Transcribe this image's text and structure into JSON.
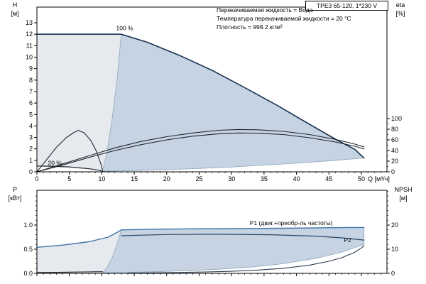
{
  "title": "TPE3 65-120, 1*230 V",
  "conditions": [
    "Перекачиваемая жидкость = Вода",
    "Температура перекачиваемой жидкости = 20 °C",
    "Плотность = 998.2 кг/м³"
  ],
  "axes_headers": {
    "h": {
      "symbol": "H",
      "unit": "[м]"
    },
    "eta": {
      "symbol": "eta",
      "unit": "[%]"
    },
    "p": {
      "symbol": "P",
      "unit": "[кВт]"
    },
    "npsh": {
      "symbol": "NPSH",
      "unit": "[м]"
    }
  },
  "colors": {
    "band_light": "#e6eaee",
    "band_main": "#c5d3e2",
    "band_edge": "#8fa7be",
    "white": "#ffffff",
    "curve": "#222630",
    "pump_curve": "#1c3552",
    "p1": "#4273a6",
    "p2": "#27496b",
    "npsh": "#2c3e50"
  },
  "chart_data": [
    {
      "type": "line",
      "name": "qh-eta-chart",
      "x_axis": {
        "unit_label": "Q [м³/ч]",
        "show_labels": true,
        "min": 0,
        "max": 53.9,
        "minor_step": 1,
        "major": [
          [
            0,
            "0"
          ],
          [
            5,
            "5"
          ],
          [
            10,
            "10"
          ],
          [
            15,
            "15"
          ],
          [
            20,
            "20"
          ],
          [
            25,
            "25"
          ],
          [
            30,
            "30"
          ],
          [
            35,
            "35"
          ],
          [
            40,
            "40"
          ],
          [
            45,
            "45"
          ],
          [
            50,
            "50"
          ]
        ]
      },
      "y_left": {
        "axis": "h",
        "minor_step": 0,
        "major": [
          [
            0,
            "0"
          ],
          [
            1,
            "1"
          ],
          [
            2,
            "2"
          ],
          [
            3,
            "3"
          ],
          [
            4,
            "4"
          ],
          [
            5,
            "5"
          ],
          [
            6,
            "6"
          ],
          [
            7,
            "7"
          ],
          [
            8,
            "8"
          ],
          [
            9,
            "9"
          ],
          [
            10,
            "10"
          ],
          [
            11,
            "11"
          ],
          [
            12,
            "12"
          ],
          [
            13,
            "13"
          ]
        ]
      },
      "y_right": {
        "axis": "eta",
        "minor_step": 10,
        "minor_min": 10,
        "minor_max": 100,
        "major": [
          [
            0,
            "0"
          ],
          [
            20,
            "20"
          ],
          [
            40,
            "40"
          ],
          [
            60,
            "60"
          ],
          [
            80,
            "80"
          ],
          [
            100,
            "100"
          ]
        ]
      },
      "bands": [
        {
          "name": "speed-range-left",
          "axis": "h",
          "color": "band_light",
          "points": [
            [
              0,
              12
            ],
            [
              13,
              12
            ],
            [
              12.4,
              8.3
            ],
            [
              11.6,
              4.6
            ],
            [
              10.8,
              1.7
            ],
            [
              10.1,
              0.05
            ],
            [
              8,
              0.27
            ],
            [
              5,
              0.43
            ],
            [
              2,
              0.49
            ],
            [
              0,
              0.5
            ]
          ]
        },
        {
          "name": "duty-range",
          "axis": "h",
          "color": "band_main",
          "stroke": "band_edge",
          "points": [
            [
              13,
              12
            ],
            [
              17,
              11.3
            ],
            [
              22,
              10.15
            ],
            [
              27,
              8.85
            ],
            [
              32,
              7.35
            ],
            [
              37,
              5.8
            ],
            [
              42,
              4.15
            ],
            [
              46,
              2.85
            ],
            [
              49,
              1.95
            ],
            [
              50.4,
              1.2
            ],
            [
              45.4,
              0.97
            ],
            [
              40.3,
              0.77
            ],
            [
              35.3,
              0.59
            ],
            [
              30.2,
              0.43
            ],
            [
              25.2,
              0.3
            ],
            [
              20.2,
              0.19
            ],
            [
              15.1,
              0.11
            ],
            [
              10.1,
              0.05
            ],
            [
              10.8,
              1.7
            ],
            [
              11.6,
              4.6
            ],
            [
              12.4,
              8.3
            ]
          ]
        }
      ],
      "series": [
        {
          "name": "qh-100pct",
          "axis": "h",
          "color": "pump_curve",
          "width": 1.6,
          "points": [
            [
              0,
              12
            ],
            [
              4,
              12
            ],
            [
              8,
              12
            ],
            [
              13,
              12
            ],
            [
              17,
              11.3
            ],
            [
              22,
              10.15
            ],
            [
              27,
              8.85
            ],
            [
              32,
              7.35
            ],
            [
              37,
              5.8
            ],
            [
              42,
              4.15
            ],
            [
              46,
              2.85
            ],
            [
              49,
              1.95
            ],
            [
              50.4,
              1.2
            ]
          ]
        },
        {
          "name": "qh-20pct",
          "axis": "h",
          "color": "curve",
          "width": 1.2,
          "points": [
            [
              0,
              0.5
            ],
            [
              2,
              0.49
            ],
            [
              5,
              0.43
            ],
            [
              8,
              0.27
            ],
            [
              9.5,
              0.14
            ],
            [
              10.1,
              0.05
            ]
          ]
        },
        {
          "name": "eta-pump",
          "axis": "eta",
          "color": "curve",
          "width": 1.1,
          "points": [
            [
              0,
              0
            ],
            [
              4,
              15
            ],
            [
              8,
              30
            ],
            [
              12,
              45
            ],
            [
              16,
              57
            ],
            [
              20,
              66
            ],
            [
              24,
              73
            ],
            [
              28,
              78
            ],
            [
              31,
              79.5
            ],
            [
              34,
              79
            ],
            [
              38,
              76
            ],
            [
              42,
              70
            ],
            [
              46,
              61
            ],
            [
              49,
              52
            ],
            [
              50.4,
              47
            ]
          ]
        },
        {
          "name": "eta-pump-motor",
          "axis": "eta",
          "color": "curve",
          "width": 1.1,
          "points": [
            [
              0,
              0
            ],
            [
              4,
              13
            ],
            [
              8,
              27
            ],
            [
              12,
              40
            ],
            [
              16,
              51
            ],
            [
              20,
              60
            ],
            [
              24,
              67
            ],
            [
              28,
              71.5
            ],
            [
              31,
              73
            ],
            [
              34,
              72.5
            ],
            [
              38,
              70
            ],
            [
              42,
              64
            ],
            [
              46,
              56
            ],
            [
              49,
              48
            ],
            [
              50.4,
              43
            ]
          ]
        },
        {
          "name": "eta-20pct",
          "axis": "eta",
          "color": "curve",
          "width": 1.1,
          "points": [
            [
              0,
              0
            ],
            [
              1.5,
              23
            ],
            [
              3,
              46
            ],
            [
              4.5,
              64
            ],
            [
              5.7,
              74
            ],
            [
              6.4,
              78
            ],
            [
              7.3,
              73
            ],
            [
              8.3,
              59
            ],
            [
              9.2,
              38
            ],
            [
              9.9,
              13
            ],
            [
              10.1,
              3
            ]
          ]
        }
      ],
      "annotations": [
        {
          "name": "speed-100",
          "text": "100 %",
          "axis": "h",
          "q": 12.2,
          "v": 12.35,
          "color": "curve"
        },
        {
          "name": "speed-20",
          "text": "20 %",
          "axis": "h",
          "q": 1.7,
          "v": 0.58,
          "color": "curve"
        }
      ]
    },
    {
      "type": "line",
      "name": "power-npsh-chart",
      "x_axis": {
        "unit_label": "",
        "show_labels": false,
        "min": 0,
        "max": 53.9,
        "minor_step": 1,
        "major": [
          [
            0,
            "0"
          ],
          [
            5,
            "5"
          ],
          [
            10,
            "10"
          ],
          [
            15,
            "15"
          ],
          [
            20,
            "20"
          ],
          [
            25,
            "25"
          ],
          [
            30,
            "30"
          ],
          [
            35,
            "35"
          ],
          [
            40,
            "40"
          ],
          [
            45,
            "45"
          ],
          [
            50,
            "50"
          ]
        ]
      },
      "y_left": {
        "axis": "p",
        "minor_step": 0.1,
        "minor_min": 0.1,
        "minor_max": 1.65,
        "major": [
          [
            0,
            "0.0"
          ],
          [
            0.5,
            "0.5"
          ],
          [
            1,
            "1.0"
          ]
        ]
      },
      "y_right": {
        "axis": "npsh",
        "minor_step": 2,
        "minor_min": 2,
        "minor_max": 34,
        "major": [
          [
            0,
            "0"
          ],
          [
            10,
            "10"
          ],
          [
            20,
            "20"
          ]
        ]
      },
      "bands": [
        {
          "name": "power-range-left",
          "axis": "p",
          "color": "band_light",
          "points": [
            [
              0,
              0.54
            ],
            [
              4,
              0.585
            ],
            [
              8,
              0.655
            ],
            [
              11,
              0.75
            ],
            [
              12.5,
              0.86
            ],
            [
              13,
              0.9
            ],
            [
              12.4,
              0.62
            ],
            [
              11.6,
              0.33
            ],
            [
              10.8,
              0.12
            ],
            [
              10.1,
              0.012
            ],
            [
              8.5,
              0.031
            ],
            [
              6,
              0.026
            ],
            [
              3,
              0.021
            ],
            [
              0,
              0.018
            ]
          ]
        },
        {
          "name": "power-duty-range",
          "axis": "p",
          "color": "band_main",
          "stroke": "band_edge",
          "points": [
            [
              13,
              0.9
            ],
            [
              18,
              0.915
            ],
            [
              26,
              0.925
            ],
            [
              34,
              0.93
            ],
            [
              42,
              0.94
            ],
            [
              48,
              0.95
            ],
            [
              50.4,
              0.95
            ],
            [
              50.4,
              0.6
            ],
            [
              47,
              0.44
            ],
            [
              43,
              0.31
            ],
            [
              38,
              0.2
            ],
            [
              33,
              0.13
            ],
            [
              28,
              0.085
            ],
            [
              23,
              0.055
            ],
            [
              18,
              0.033
            ],
            [
              14,
              0.02
            ],
            [
              10.1,
              0.012
            ],
            [
              10.8,
              0.12
            ],
            [
              11.6,
              0.33
            ],
            [
              12.4,
              0.62
            ]
          ]
        },
        {
          "name": "npsh-cutout",
          "axis": "npsh",
          "color": "white",
          "points": [
            [
              14,
              0
            ],
            [
              14,
              0.15
            ],
            [
              20,
              0.3
            ],
            [
              26,
              0.55
            ],
            [
              30,
              0.85
            ],
            [
              34,
              1.35
            ],
            [
              38,
              2.1
            ],
            [
              42,
              3.4
            ],
            [
              45,
              5.0
            ],
            [
              47,
              6.5
            ],
            [
              48.8,
              8.5
            ],
            [
              50,
              10.5
            ],
            [
              50.4,
              11.5
            ],
            [
              50.4,
              0
            ]
          ]
        }
      ],
      "series": [
        {
          "name": "p1-max",
          "axis": "p",
          "color": "p1",
          "width": 1.4,
          "points": [
            [
              0,
              0.54
            ],
            [
              4,
              0.585
            ],
            [
              8,
              0.655
            ],
            [
              11,
              0.75
            ],
            [
              12.5,
              0.86
            ],
            [
              13,
              0.9
            ],
            [
              18,
              0.915
            ],
            [
              26,
              0.925
            ],
            [
              34,
              0.93
            ],
            [
              42,
              0.94
            ],
            [
              48,
              0.95
            ],
            [
              50.4,
              0.95
            ]
          ]
        },
        {
          "name": "p2-max",
          "axis": "p",
          "color": "p2",
          "width": 1.2,
          "points": [
            [
              13,
              0.78
            ],
            [
              20,
              0.805
            ],
            [
              28,
              0.81
            ],
            [
              36,
              0.8
            ],
            [
              43,
              0.77
            ],
            [
              47,
              0.735
            ],
            [
              50.4,
              0.69
            ]
          ]
        },
        {
          "name": "p-20pct",
          "axis": "p",
          "color": "curve",
          "width": 1.2,
          "points": [
            [
              0,
              0.018
            ],
            [
              3,
              0.021
            ],
            [
              6,
              0.026
            ],
            [
              8.5,
              0.031
            ],
            [
              10.1,
              0.034
            ]
          ]
        },
        {
          "name": "npsh",
          "axis": "npsh",
          "color": "npsh",
          "width": 1.1,
          "points": [
            [
              14,
              0.15
            ],
            [
              20,
              0.3
            ],
            [
              26,
              0.55
            ],
            [
              30,
              0.85
            ],
            [
              34,
              1.35
            ],
            [
              38,
              2.1
            ],
            [
              42,
              3.4
            ],
            [
              45,
              5.0
            ],
            [
              47,
              6.5
            ],
            [
              48.8,
              8.5
            ],
            [
              50,
              10.5
            ],
            [
              50.4,
              11.5
            ]
          ]
        }
      ],
      "annotations": [
        {
          "name": "p1-label",
          "text": "P1 (двиг.+преобр-ль частоты)",
          "axis": "p",
          "q": 32.8,
          "v": 1.0,
          "color": "p1"
        },
        {
          "name": "p2-label",
          "text": "P2",
          "axis": "p",
          "q": 47.3,
          "v": 0.645,
          "color": "p2"
        }
      ]
    }
  ]
}
